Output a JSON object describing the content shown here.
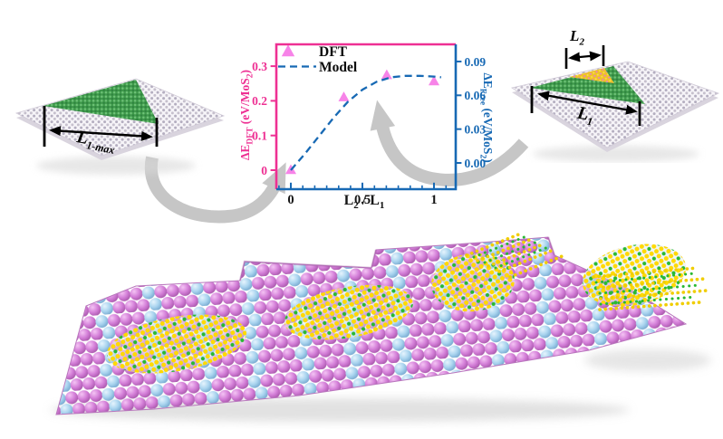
{
  "colors": {
    "pink_axis": "#ee3093",
    "blue_axis": "#1769b4",
    "marker_pink": "#f783e8",
    "arrow_gray": "#c6c6c6",
    "sphere_pink": "#d47fd8",
    "sphere_blue": "#a9d4ef",
    "atom_yellow": "#ffd900",
    "atom_green": "#28b932",
    "lattice_dot": "#b4aec0",
    "triangle_green": "#3f9a4b",
    "inner_patch_yellow": "#efc229"
  },
  "chart_data": {
    "type": "scatter+line",
    "grid": false,
    "legend_position": "top-left-inside",
    "xlabel_parts": {
      "b1": "L",
      "s1": "2",
      "mid": " / ",
      "b2": "L",
      "s2": "1"
    },
    "x_axis": {
      "tick_values": [
        0,
        0.5,
        1
      ],
      "tick_labels": [
        "0",
        "0.5",
        "1"
      ],
      "range": [
        -0.1,
        1.15
      ]
    },
    "left_axis": {
      "title": {
        "sym": "ΔE",
        "sub": "DFT",
        "unit": " (eV/MoS",
        "unit_sub": "2",
        "close": ")"
      },
      "tick_values": [
        0,
        0.1,
        0.2,
        0.3
      ],
      "tick_labels": [
        "0",
        "0.1",
        "0.2",
        "0.3"
      ],
      "range": [
        -0.06,
        0.37
      ],
      "color": "#ee3093"
    },
    "right_axis": {
      "title": {
        "sym": "ΔE",
        "sub": "Free",
        "unit": " (eV/MoS",
        "unit_sub": "2",
        "close": ")"
      },
      "tick_values": [
        0,
        0.03,
        0.06,
        0.09
      ],
      "tick_labels": [
        "0.00",
        "0.03",
        "0.06",
        "0.09"
      ],
      "range": [
        -0.015,
        0.115
      ],
      "color": "#1769b4"
    },
    "series": [
      {
        "name": "DFT",
        "type": "scatter",
        "marker": "triangle-up",
        "color": "#f783e8",
        "axis": "left",
        "points": [
          [
            0,
            0.0
          ],
          [
            0.37,
            0.21
          ],
          [
            0.67,
            0.274
          ],
          [
            1.0,
            0.256
          ]
        ]
      },
      {
        "name": "Model",
        "type": "line",
        "dash": "dashed",
        "color": "#1769b4",
        "axis": "left",
        "points": [
          [
            0,
            0.0
          ],
          [
            0.1,
            0.048
          ],
          [
            0.2,
            0.1
          ],
          [
            0.3,
            0.152
          ],
          [
            0.4,
            0.198
          ],
          [
            0.5,
            0.232
          ],
          [
            0.6,
            0.255
          ],
          [
            0.7,
            0.268
          ],
          [
            0.8,
            0.272
          ],
          [
            0.9,
            0.272
          ],
          [
            1.0,
            0.27
          ],
          [
            1.05,
            0.268
          ]
        ]
      }
    ]
  },
  "left_structure": {
    "label": {
      "base": "L",
      "sub": "1-max"
    }
  },
  "right_structure": {
    "l2_label": {
      "base": "L",
      "sub": "2"
    },
    "l1_label": {
      "base": "L",
      "sub": "1"
    }
  }
}
